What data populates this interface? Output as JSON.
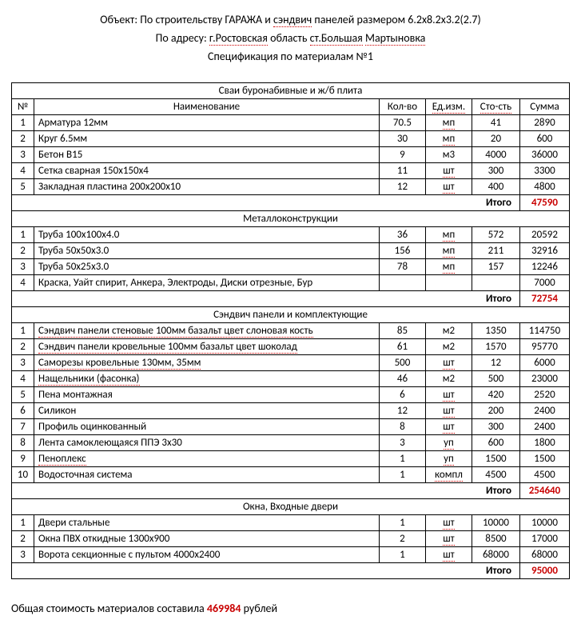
{
  "header": {
    "object_prefix": "Объект: По строительству ГАРАЖА и ",
    "object_underlined": "сэндвич",
    "object_suffix": " панелей размером 6.2x8.2x3.2(2.7)",
    "address_prefix": "По адресу: ",
    "address_underlined": "г.Ростовская",
    "address_mid": " область ",
    "address_underlined2": "ст.Большая",
    "address_suffix": " ",
    "address_underlined3": "Мартыновка",
    "spec": "Спецификация по материалам №1"
  },
  "columns": {
    "num": "№",
    "name": "Наименование",
    "qty": "Кол-во",
    "unit": "Ед.изм.",
    "cost": "Сто-сть",
    "sum": "Сумма"
  },
  "total_label": "Итого",
  "sections": [
    {
      "title": "Сваи буронабивные и ж/б плита",
      "rows": [
        {
          "n": "1",
          "name": "Арматура 12мм",
          "qty": "70.5",
          "unit": "мп",
          "cost": "41",
          "sum": "2890",
          "ud_unit": true
        },
        {
          "n": "2",
          "name": "Круг 6.5мм",
          "qty": "30",
          "unit": "мп",
          "cost": "20",
          "sum": "600",
          "ud_unit": true
        },
        {
          "n": "3",
          "name": "Бетон В15",
          "qty": "9",
          "unit": "м3",
          "cost": "4000",
          "sum": "36000"
        },
        {
          "n": "4",
          "name": "Сетка сварная 150х150х4",
          "qty": "11",
          "unit": "шт",
          "cost": "300",
          "sum": "3300",
          "ud_unit": true
        },
        {
          "n": "5",
          "name": "Закладная пластина 200х200х10",
          "qty": "12",
          "unit": "шт",
          "cost": "400",
          "sum": "4800",
          "ud_unit": true
        }
      ],
      "total": "47590"
    },
    {
      "title": "Металлоконструкции",
      "rows": [
        {
          "n": "1",
          "name": "Труба 100х100х4.0",
          "qty": "36",
          "unit": "мп",
          "cost": "572",
          "sum": "20592",
          "ud_unit": true
        },
        {
          "n": "2",
          "name": "Труба 50х50х3.0",
          "qty": "156",
          "unit": "мп",
          "cost": "211",
          "sum": "32916",
          "ud_unit": true
        },
        {
          "n": "3",
          "name": "Труба 50х25х3.0",
          "qty": "78",
          "unit": "мп",
          "cost": "157",
          "sum": "12246",
          "ud_unit": true
        },
        {
          "n": "4",
          "name": "Краска, Уайт спирит, Анкера, Электроды, Диски отрезные, Бур",
          "qty": "",
          "unit": "",
          "cost": "",
          "sum": "7000"
        }
      ],
      "total": "72754"
    },
    {
      "title": "Сэндвич панели и комплектующие",
      "rows": [
        {
          "n": "1",
          "name": "Сэндвич панели стеновые 100мм базальт цвет слоновая кость",
          "qty": "85",
          "unit": "м2",
          "cost": "1350",
          "sum": "114750",
          "ud_name": true
        },
        {
          "n": "2",
          "name": "Сэндвич панели кровельные 100мм базальт цвет шоколад",
          "qty": "61",
          "unit": "м2",
          "cost": "1570",
          "sum": "95770",
          "ud_name": true
        },
        {
          "n": "3",
          "name": "Саморезы кровельные 130мм, 35мм",
          "qty": "500",
          "unit": "шт",
          "cost": "12",
          "sum": "6000",
          "ud_name": true,
          "ud_unit": true
        },
        {
          "n": "4",
          "name": "Нащельники (фасонка)",
          "qty": "46",
          "unit": "м2",
          "cost": "500",
          "sum": "23000",
          "ud_name": true
        },
        {
          "n": "5",
          "name": "Пена монтажная",
          "qty": "6",
          "unit": "шт",
          "cost": "420",
          "sum": "2520",
          "ud_unit": true
        },
        {
          "n": "6",
          "name": "Силикон",
          "qty": "12",
          "unit": "шт",
          "cost": "200",
          "sum": "2400",
          "ud_unit": true
        },
        {
          "n": "7",
          "name": "Профиль оцинкованный",
          "qty": "8",
          "unit": "шт",
          "cost": "300",
          "sum": "2400",
          "ud_unit": true
        },
        {
          "n": "8",
          "name": "Лента самоклеющаяся ППЭ 3х30",
          "qty": "3",
          "unit": "уп",
          "cost": "600",
          "sum": "1800",
          "ud_unit": true
        },
        {
          "n": "9",
          "name": "Пеноплекс",
          "qty": "1",
          "unit": "уп",
          "cost": "1500",
          "sum": "1500",
          "ud_name": true,
          "ud_unit": true
        },
        {
          "n": "10",
          "name": "Водосточная система",
          "qty": "1",
          "unit": "компл",
          "cost": "4500",
          "sum": "4500",
          "ud_unit": true
        }
      ],
      "total": "254640"
    },
    {
      "title": "Окна, Входные двери",
      "rows": [
        {
          "n": "1",
          "name": "Двери стальные",
          "qty": "1",
          "unit": "шт",
          "cost": "10000",
          "sum": "10000",
          "ud_unit": true
        },
        {
          "n": "2",
          "name": "Окна ПВХ  откидные 1300х900",
          "qty": "2",
          "unit": "шт",
          "cost": "8500",
          "sum": "17000",
          "ud_unit": true
        },
        {
          "n": "3",
          "name": "Ворота секционные с пультом 4000х2400",
          "qty": "1",
          "unit": "шт",
          "cost": "68000",
          "sum": "68000",
          "ud_unit": true
        }
      ],
      "total": "95000"
    }
  ],
  "grand": {
    "prefix": "Общая стоимость материалов составила  ",
    "value": "469984",
    "suffix": "  рублей"
  }
}
